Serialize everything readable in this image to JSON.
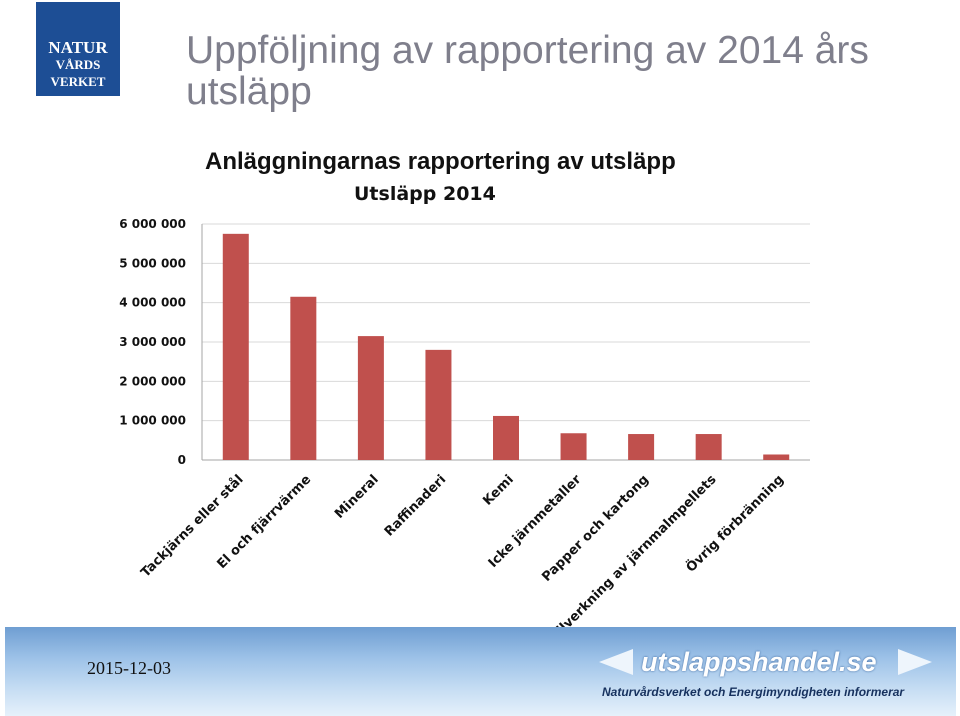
{
  "logo": {
    "line1": "NATUR",
    "line2": "VÅRDS",
    "line3": "VERKET"
  },
  "slide_title": "Uppföljning av rapportering av 2014 års utsläpp",
  "chart_heading": "Anläggningarnas rapportering av utsläpp",
  "footer": {
    "date": "2015-12-03",
    "site": "utslappshandel.se",
    "tagline": "Naturvårdsverket och Energimyndigheten informerar"
  },
  "colors": {
    "bar": "#c0504d",
    "logo_bg": "#1d4e95",
    "title": "#7f7f8c"
  },
  "chart_data": {
    "type": "bar",
    "title": "Utsläpp 2014",
    "categories": [
      "Tackjärns eller stål",
      "El och fjärrvärme",
      "Mineral",
      "Raffinaderi",
      "Kemi",
      "Icke järnmetaller",
      "Papper och kartong",
      "Tillverkning av järnmalmpellets",
      "Övrig förbränning"
    ],
    "values": [
      5750000,
      4150000,
      3150000,
      2800000,
      1120000,
      680000,
      660000,
      660000,
      140000
    ],
    "ylim": [
      0,
      6000000
    ],
    "yticks": [
      0,
      1000000,
      2000000,
      3000000,
      4000000,
      5000000,
      6000000
    ],
    "ytick_labels": [
      "0",
      "1 000 000",
      "2 000 000",
      "3 000 000",
      "4 000 000",
      "5 000 000",
      "6 000 000"
    ],
    "grid": true,
    "legend": "none"
  }
}
